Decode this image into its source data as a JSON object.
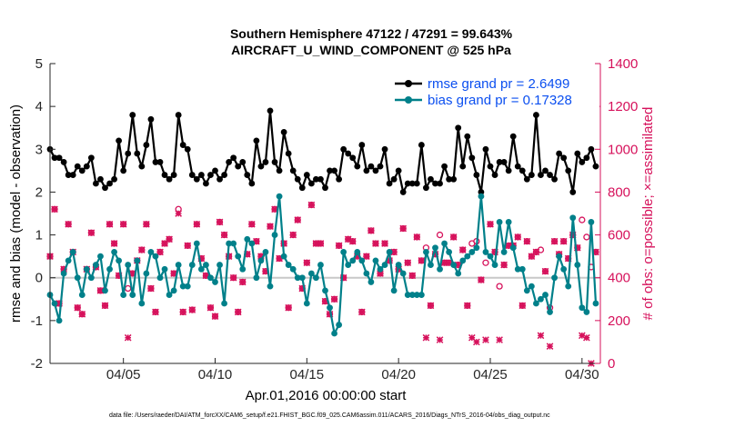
{
  "chart_data": {
    "type": "line",
    "title": "Southern Hemisphere 47122 / 47291 = 99.643%",
    "subtitle": "AIRCRAFT_U_WIND_COMPONENT @ 525 hPa",
    "xlabel": "Apr.01,2016 00:00:00 start",
    "ylabel": "rmse and bias (model - observation)",
    "y2label": "# of obs: o=possible; ×=assimilated",
    "footer": "data file: /Users/raeder/DAI/ATM_forcXX/CAM6_setup/f.e21.FHIST_BGC.f09_025.CAM6assim.011/ACARS_2016/Diags_NTrS_2016-04/obs_diag_output.nc",
    "xlim": [
      1.0,
      31.0
    ],
    "ylim": [
      -2,
      5
    ],
    "y2lim": [
      0,
      1400
    ],
    "xticks": [
      5,
      10,
      15,
      20,
      25,
      30
    ],
    "xtick_labels": [
      "04/05",
      "04/10",
      "04/15",
      "04/20",
      "04/25",
      "04/30"
    ],
    "yticks": [
      -2,
      -1,
      0,
      1,
      2,
      3,
      4,
      5
    ],
    "y2ticks": [
      0,
      200,
      400,
      600,
      800,
      1000,
      1200,
      1400
    ],
    "zero_line": 0,
    "colors": {
      "rmse": "#000000",
      "bias": "#00808a",
      "obs": "#d6115b",
      "zero": "#c8c8c8",
      "legend_text": "#0b4ff0"
    },
    "series": [
      {
        "name": "rmse grand pr = 2.6499",
        "x": [
          1.0,
          1.25,
          1.5,
          1.75,
          2.0,
          2.25,
          2.5,
          2.75,
          3.0,
          3.25,
          3.5,
          3.75,
          4.0,
          4.25,
          4.5,
          4.75,
          5.0,
          5.25,
          5.5,
          5.75,
          6.0,
          6.25,
          6.5,
          6.75,
          7.0,
          7.25,
          7.5,
          7.75,
          8.0,
          8.25,
          8.5,
          8.75,
          9.0,
          9.25,
          9.5,
          9.75,
          10.0,
          10.25,
          10.5,
          10.75,
          11.0,
          11.25,
          11.5,
          11.75,
          12.0,
          12.25,
          12.5,
          12.75,
          13.0,
          13.25,
          13.5,
          13.75,
          14.0,
          14.25,
          14.5,
          14.75,
          15.0,
          15.25,
          15.5,
          15.75,
          16.0,
          16.25,
          16.5,
          16.75,
          17.0,
          17.25,
          17.5,
          17.75,
          18.0,
          18.25,
          18.5,
          18.75,
          19.0,
          19.25,
          19.5,
          19.75,
          20.0,
          20.25,
          20.5,
          20.75,
          21.0,
          21.25,
          21.5,
          21.75,
          22.0,
          22.25,
          22.5,
          22.75,
          23.0,
          23.25,
          23.5,
          23.75,
          24.0,
          24.25,
          24.5,
          24.75,
          25.0,
          25.25,
          25.5,
          25.75,
          26.0,
          26.25,
          26.5,
          26.75,
          27.0,
          27.25,
          27.5,
          27.75,
          28.0,
          28.25,
          28.5,
          28.75,
          29.0,
          29.25,
          29.5,
          29.75,
          30.0,
          30.25,
          30.5,
          30.75
        ],
        "y": [
          3.0,
          2.8,
          2.8,
          2.7,
          2.4,
          2.4,
          2.6,
          2.5,
          2.6,
          2.8,
          2.2,
          2.3,
          2.1,
          2.2,
          2.3,
          3.2,
          2.5,
          2.9,
          3.8,
          2.9,
          2.6,
          3.1,
          3.7,
          2.7,
          2.7,
          2.4,
          2.3,
          2.4,
          3.8,
          3.1,
          3.0,
          2.4,
          2.3,
          2.4,
          2.2,
          2.4,
          2.5,
          2.3,
          2.4,
          2.7,
          2.8,
          2.6,
          2.7,
          2.4,
          2.2,
          3.2,
          2.6,
          2.7,
          3.9,
          2.7,
          2.5,
          3.4,
          2.9,
          2.5,
          2.3,
          2.1,
          2.4,
          2.2,
          2.3,
          2.3,
          2.1,
          2.5,
          2.5,
          2.3,
          3.0,
          2.9,
          2.8,
          2.6,
          3.1,
          2.5,
          2.6,
          2.5,
          2.6,
          3.0,
          2.2,
          2.3,
          2.5,
          2.0,
          2.2,
          2.2,
          2.2,
          3.1,
          2.1,
          2.3,
          2.2,
          2.2,
          2.6,
          2.3,
          2.3,
          3.5,
          2.6,
          3.3,
          2.8,
          2.4,
          2.0,
          3.0,
          2.6,
          2.4,
          2.7,
          2.7,
          2.5,
          3.3,
          2.6,
          2.5,
          2.3,
          2.4,
          3.8,
          2.4,
          2.5,
          2.4,
          2.3,
          2.9,
          2.8,
          2.5,
          2.0,
          2.9,
          2.7,
          2.8,
          3.0,
          2.6
        ]
      },
      {
        "name": "bias grand pr = 0.17328",
        "x": [
          1.0,
          1.25,
          1.5,
          1.75,
          2.0,
          2.25,
          2.5,
          2.75,
          3.0,
          3.25,
          3.5,
          3.75,
          4.0,
          4.25,
          4.5,
          4.75,
          5.0,
          5.25,
          5.5,
          5.75,
          6.0,
          6.25,
          6.5,
          6.75,
          7.0,
          7.25,
          7.5,
          7.75,
          8.0,
          8.25,
          8.5,
          8.75,
          9.0,
          9.25,
          9.5,
          9.75,
          10.0,
          10.25,
          10.5,
          10.75,
          11.0,
          11.25,
          11.5,
          11.75,
          12.0,
          12.25,
          12.5,
          12.75,
          13.0,
          13.25,
          13.5,
          13.75,
          14.0,
          14.25,
          14.5,
          14.75,
          15.0,
          15.25,
          15.5,
          15.75,
          16.0,
          16.25,
          16.5,
          16.75,
          17.0,
          17.25,
          17.5,
          17.75,
          18.0,
          18.25,
          18.5,
          18.75,
          19.0,
          19.25,
          19.5,
          19.75,
          20.0,
          20.25,
          20.5,
          20.75,
          21.0,
          21.25,
          21.5,
          21.75,
          22.0,
          22.25,
          22.5,
          22.75,
          23.0,
          23.25,
          23.5,
          23.75,
          24.0,
          24.25,
          24.5,
          24.75,
          25.0,
          25.25,
          25.5,
          25.75,
          26.0,
          26.25,
          26.5,
          26.75,
          27.0,
          27.25,
          27.5,
          27.75,
          28.0,
          28.25,
          28.5,
          28.75,
          29.0,
          29.25,
          29.5,
          29.75,
          30.0,
          30.25,
          30.5,
          30.75
        ],
        "y": [
          -0.4,
          -0.6,
          -1.0,
          0.1,
          0.4,
          0.6,
          0.0,
          -0.4,
          0.2,
          0.0,
          0.3,
          0.5,
          -0.3,
          0.2,
          0.6,
          0.4,
          -0.4,
          0.3,
          -0.4,
          0.4,
          -0.6,
          0.1,
          0.6,
          0.5,
          0.0,
          0.2,
          -0.4,
          -0.3,
          0.3,
          -0.2,
          -0.2,
          0.3,
          0.8,
          0.2,
          0.3,
          0.0,
          -0.1,
          0.3,
          -0.6,
          0.8,
          0.8,
          0.5,
          0.2,
          0.9,
          0.8,
          0.0,
          0.4,
          0.6,
          -0.2,
          1.0,
          1.9,
          0.5,
          0.3,
          0.2,
          0.0,
          0.0,
          -0.6,
          0.1,
          0.0,
          0.3,
          -0.3,
          -0.7,
          -1.3,
          -1.1,
          0.6,
          0.3,
          0.4,
          0.6,
          0.4,
          0.1,
          -0.1,
          0.4,
          0.2,
          0.3,
          0.6,
          -0.3,
          0.3,
          0.1,
          -0.4,
          -0.4,
          -0.4,
          -0.4,
          0.6,
          0.3,
          0.7,
          0.2,
          0.8,
          0.6,
          0.3,
          0.1,
          0.4,
          0.5,
          0.6,
          0.7,
          1.9,
          0.6,
          0.5,
          0.3,
          1.3,
          0.6,
          1.3,
          0.7,
          0.2,
          0.2,
          -0.3,
          -0.2,
          -0.6,
          -0.5,
          -0.4,
          -0.8,
          0.0,
          0.5,
          0.2,
          -0.2,
          1.4,
          0.3,
          -0.7,
          -0.8,
          1.3,
          -0.6
        ]
      }
    ],
    "obs_possible": {
      "x": [
        1.0,
        1.25,
        1.5,
        1.75,
        2.0,
        2.25,
        2.5,
        2.75,
        3.0,
        3.25,
        3.5,
        3.75,
        4.0,
        4.25,
        4.5,
        4.75,
        5.0,
        5.25,
        5.5,
        5.75,
        6.0,
        6.25,
        6.5,
        6.75,
        7.0,
        7.25,
        7.5,
        7.75,
        8.0,
        8.25,
        8.5,
        8.75,
        9.0,
        9.25,
        9.5,
        9.75,
        10.0,
        10.25,
        10.5,
        10.75,
        11.0,
        11.25,
        11.5,
        11.75,
        12.0,
        12.25,
        12.5,
        12.75,
        13.0,
        13.25,
        13.5,
        13.75,
        14.0,
        14.25,
        14.5,
        14.75,
        15.0,
        15.25,
        15.5,
        15.75,
        16.0,
        16.25,
        16.5,
        16.75,
        17.0,
        17.25,
        17.5,
        17.75,
        18.0,
        18.25,
        18.5,
        18.75,
        19.0,
        19.25,
        19.5,
        19.75,
        20.0,
        20.25,
        20.5,
        20.75,
        21.0,
        21.25,
        21.5,
        21.75,
        22.0,
        22.25,
        22.5,
        22.75,
        23.0,
        23.25,
        23.5,
        23.75,
        24.0,
        24.25,
        24.5,
        24.75,
        25.0,
        25.25,
        25.5,
        25.75,
        26.0,
        26.25,
        26.5,
        26.75,
        27.0,
        27.25,
        27.5,
        27.75,
        28.0,
        28.25,
        28.5,
        28.75,
        29.0,
        29.25,
        29.5,
        29.75,
        30.0,
        30.25,
        30.5,
        30.75
      ],
      "y": [
        500,
        720,
        280,
        440,
        650,
        520,
        260,
        230,
        440,
        610,
        450,
        340,
        270,
        650,
        560,
        410,
        650,
        350,
        420,
        480,
        530,
        650,
        350,
        240,
        520,
        560,
        580,
        420,
        720,
        240,
        550,
        250,
        650,
        490,
        410,
        260,
        220,
        660,
        600,
        500,
        400,
        240,
        380,
        510,
        650,
        570,
        500,
        430,
        640,
        720,
        490,
        560,
        260,
        600,
        670,
        350,
        470,
        740,
        560,
        560,
        290,
        230,
        300,
        550,
        400,
        580,
        570,
        500,
        240,
        500,
        620,
        560,
        420,
        560,
        480,
        520,
        440,
        630,
        470,
        410,
        590,
        480,
        540,
        270,
        510,
        600,
        470,
        470,
        590,
        460,
        530,
        270,
        560,
        570,
        390,
        470,
        650,
        520,
        360,
        460,
        550,
        550,
        590,
        270,
        570,
        500,
        520,
        530,
        430,
        260,
        570,
        510,
        570,
        490,
        600,
        540,
        670,
        590,
        450,
        520
      ]
    },
    "obs_assimilated": {
      "x": [
        1.0,
        1.25,
        1.5,
        1.75,
        2.0,
        2.25,
        2.5,
        2.75,
        3.0,
        3.25,
        3.5,
        3.75,
        4.0,
        4.25,
        4.5,
        4.75,
        5.0,
        5.25,
        5.5,
        5.75,
        6.0,
        6.25,
        6.5,
        6.75,
        7.0,
        7.25,
        7.5,
        7.75,
        8.0,
        8.25,
        8.5,
        8.75,
        9.0,
        9.25,
        9.5,
        9.75,
        10.0,
        10.25,
        10.5,
        10.75,
        11.0,
        11.25,
        11.5,
        11.75,
        12.0,
        12.25,
        12.5,
        12.75,
        13.0,
        13.25,
        13.5,
        13.75,
        14.0,
        14.25,
        14.5,
        14.75,
        15.0,
        15.25,
        15.5,
        15.75,
        16.0,
        16.25,
        16.5,
        16.75,
        17.0,
        17.25,
        17.5,
        17.75,
        18.0,
        18.25,
        18.5,
        18.75,
        19.0,
        19.25,
        19.5,
        19.75,
        20.0,
        20.25,
        20.5,
        20.75,
        21.0,
        21.25,
        21.5,
        21.75,
        22.0,
        22.25,
        22.5,
        22.75,
        23.0,
        23.25,
        23.5,
        23.75,
        24.0,
        24.25,
        24.5,
        24.75,
        25.0,
        25.25,
        25.5,
        25.75,
        26.0,
        26.25,
        26.5,
        26.75,
        27.0,
        27.25,
        27.5,
        27.75,
        28.0,
        28.25,
        28.5,
        28.75,
        29.0,
        29.25,
        29.5,
        29.75,
        30.0,
        30.25,
        30.5,
        30.75
      ],
      "y": [
        500,
        720,
        280,
        440,
        650,
        520,
        260,
        230,
        440,
        610,
        450,
        340,
        270,
        650,
        560,
        410,
        650,
        120,
        420,
        480,
        530,
        650,
        350,
        240,
        520,
        560,
        580,
        420,
        700,
        240,
        550,
        250,
        650,
        490,
        410,
        260,
        220,
        660,
        600,
        500,
        400,
        240,
        380,
        510,
        650,
        570,
        500,
        430,
        640,
        720,
        490,
        560,
        260,
        600,
        670,
        350,
        470,
        740,
        560,
        560,
        290,
        230,
        300,
        550,
        400,
        580,
        570,
        500,
        240,
        500,
        620,
        560,
        420,
        560,
        480,
        520,
        440,
        630,
        470,
        410,
        590,
        480,
        120,
        270,
        510,
        110,
        470,
        470,
        590,
        460,
        530,
        270,
        120,
        100,
        390,
        110,
        650,
        520,
        110,
        460,
        550,
        550,
        590,
        270,
        570,
        500,
        520,
        130,
        430,
        80,
        570,
        510,
        570,
        490,
        600,
        540,
        130,
        120,
        0,
        520
      ]
    },
    "legend": {
      "location": "top-right",
      "entries": [
        "rmse grand pr = 2.6499",
        "bias grand pr = 0.17328"
      ]
    }
  }
}
